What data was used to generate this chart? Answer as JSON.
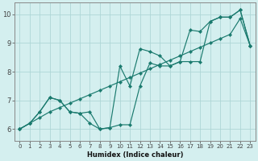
{
  "xlabel": "Humidex (Indice chaleur)",
  "background_color": "#d4efef",
  "grid_color": "#aed6d6",
  "line_color": "#1a7a6e",
  "x": [
    0,
    1,
    2,
    3,
    4,
    5,
    6,
    7,
    8,
    9,
    10,
    11,
    12,
    13,
    14,
    15,
    16,
    17,
    18,
    19,
    20,
    21,
    22,
    23
  ],
  "line_straight": [
    6.0,
    6.2,
    6.4,
    6.6,
    6.75,
    6.9,
    7.05,
    7.2,
    7.35,
    7.5,
    7.65,
    7.8,
    7.95,
    8.1,
    8.25,
    8.4,
    8.55,
    8.7,
    8.85,
    9.0,
    9.15,
    9.3,
    9.85,
    8.9
  ],
  "line_upper": [
    6.0,
    6.2,
    6.6,
    7.1,
    7.0,
    6.6,
    6.55,
    6.6,
    6.0,
    6.05,
    8.2,
    7.5,
    8.8,
    8.7,
    8.55,
    8.2,
    8.35,
    9.45,
    9.4,
    9.75,
    9.9,
    9.9,
    10.15,
    8.9
  ],
  "line_lower": [
    6.0,
    6.2,
    6.6,
    7.1,
    7.0,
    6.6,
    6.55,
    6.2,
    6.0,
    6.05,
    6.15,
    6.15,
    7.5,
    8.3,
    8.2,
    8.2,
    8.35,
    8.35,
    8.35,
    9.75,
    9.9,
    9.9,
    10.15,
    8.9
  ],
  "ylim": [
    5.6,
    10.4
  ],
  "xlim": [
    -0.5,
    23.5
  ],
  "yticks": [
    6,
    7,
    8,
    9,
    10
  ],
  "xticks": [
    0,
    1,
    2,
    3,
    4,
    5,
    6,
    7,
    8,
    9,
    10,
    11,
    12,
    13,
    14,
    15,
    16,
    17,
    18,
    19,
    20,
    21,
    22,
    23
  ]
}
